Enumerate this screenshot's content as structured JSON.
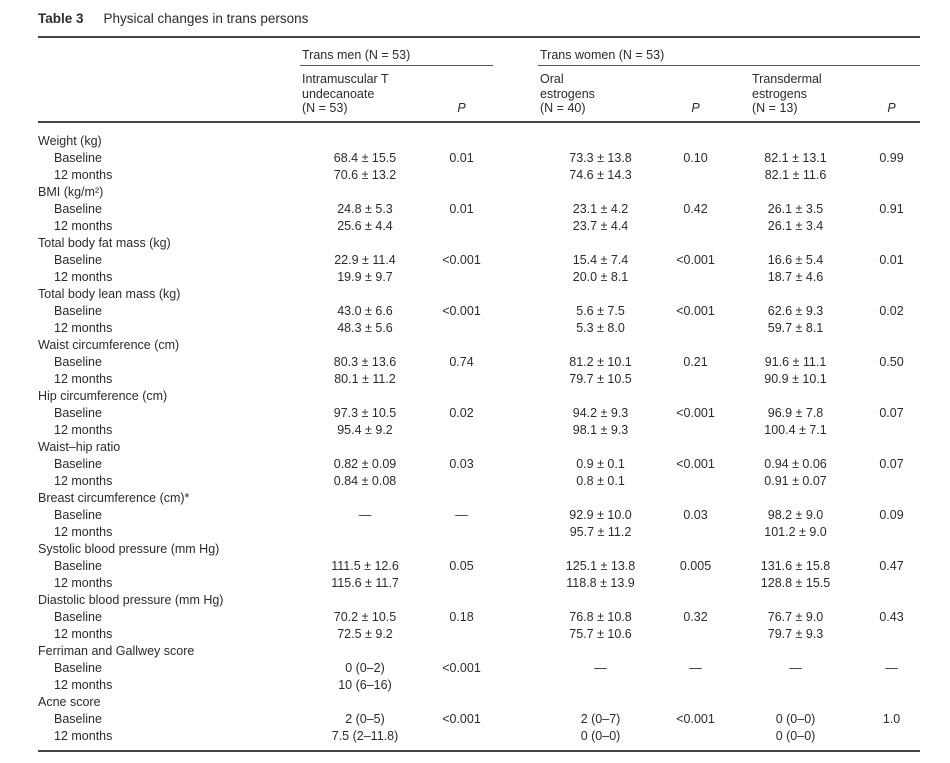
{
  "title": {
    "label": "Table 3",
    "caption": "Physical changes in trans persons"
  },
  "groups": [
    {
      "label": "Trans men (N = 53)"
    },
    {
      "label": "Trans women (N = 53)"
    }
  ],
  "col_headers": {
    "im_t": [
      "Intramuscular T",
      "undecanoate",
      "(N = 53)"
    ],
    "oral": [
      "Oral",
      "estrogens",
      "(N = 40)"
    ],
    "transdermal": [
      "Transdermal",
      "estrogens",
      "(N = 13)"
    ],
    "p": "P"
  },
  "sections": [
    {
      "label": "Weight (kg)",
      "rows": [
        {
          "label": "Baseline",
          "v1": "68.4 ± 15.5",
          "p1": "0.01",
          "v2": "73.3 ± 13.8",
          "p2": "0.10",
          "v3": "82.1 ± 13.1",
          "p3": "0.99"
        },
        {
          "label": "12 months",
          "v1": "70.6 ± 13.2",
          "p1": "",
          "v2": "74.6 ± 14.3",
          "p2": "",
          "v3": "82.1 ± 11.6",
          "p3": ""
        }
      ]
    },
    {
      "label": "BMI (kg/m²)",
      "rows": [
        {
          "label": "Baseline",
          "v1": "24.8 ± 5.3",
          "p1": "0.01",
          "v2": "23.1 ± 4.2",
          "p2": "0.42",
          "v3": "26.1 ± 3.5",
          "p3": "0.91"
        },
        {
          "label": "12 months",
          "v1": "25.6 ± 4.4",
          "p1": "",
          "v2": "23.7 ± 4.4",
          "p2": "",
          "v3": "26.1 ± 3.4",
          "p3": ""
        }
      ]
    },
    {
      "label": "Total body fat mass (kg)",
      "rows": [
        {
          "label": "Baseline",
          "v1": "22.9 ± 11.4",
          "p1": "<0.001",
          "v2": "15.4 ± 7.4",
          "p2": "<0.001",
          "v3": "16.6 ± 5.4",
          "p3": "0.01"
        },
        {
          "label": "12 months",
          "v1": "19.9 ± 9.7",
          "p1": "",
          "v2": "20.0 ± 8.1",
          "p2": "",
          "v3": "18.7 ± 4.6",
          "p3": ""
        }
      ]
    },
    {
      "label": "Total body lean mass (kg)",
      "rows": [
        {
          "label": "Baseline",
          "v1": "43.0 ± 6.6",
          "p1": "<0.001",
          "v2": "5.6 ± 7.5",
          "p2": "<0.001",
          "v3": "62.6 ± 9.3",
          "p3": "0.02"
        },
        {
          "label": "12 months",
          "v1": "48.3 ± 5.6",
          "p1": "",
          "v2": "5.3 ± 8.0",
          "p2": "",
          "v3": "59.7 ± 8.1",
          "p3": ""
        }
      ]
    },
    {
      "label": "Waist circumference (cm)",
      "rows": [
        {
          "label": "Baseline",
          "v1": "80.3 ± 13.6",
          "p1": "0.74",
          "v2": "81.2 ± 10.1",
          "p2": "0.21",
          "v3": "91.6 ± 11.1",
          "p3": "0.50"
        },
        {
          "label": "12 months",
          "v1": "80.1 ± 11.2",
          "p1": "",
          "v2": "79.7 ± 10.5",
          "p2": "",
          "v3": "90.9 ± 10.1",
          "p3": ""
        }
      ]
    },
    {
      "label": "Hip circumference (cm)",
      "rows": [
        {
          "label": "Baseline",
          "v1": "97.3 ± 10.5",
          "p1": "0.02",
          "v2": "94.2 ± 9.3",
          "p2": "<0.001",
          "v3": "96.9 ± 7.8",
          "p3": "0.07"
        },
        {
          "label": "12 months",
          "v1": "95.4 ± 9.2",
          "p1": "",
          "v2": "98.1 ± 9.3",
          "p2": "",
          "v3": "100.4 ± 7.1",
          "p3": ""
        }
      ]
    },
    {
      "label": "Waist–hip ratio",
      "rows": [
        {
          "label": "Baseline",
          "v1": "0.82 ± 0.09",
          "p1": "0.03",
          "v2": "0.9 ± 0.1",
          "p2": "<0.001",
          "v3": "0.94 ± 0.06",
          "p3": "0.07"
        },
        {
          "label": "12 months",
          "v1": "0.84 ± 0.08",
          "p1": "",
          "v2": "0.8 ± 0.1",
          "p2": "",
          "v3": "0.91 ± 0.07",
          "p3": ""
        }
      ]
    },
    {
      "label": "Breast circumference (cm)*",
      "rows": [
        {
          "label": "Baseline",
          "v1": "—",
          "p1": "—",
          "v2": "92.9 ± 10.0",
          "p2": "0.03",
          "v3": "98.2 ± 9.0",
          "p3": "0.09"
        },
        {
          "label": "12 months",
          "v1": "",
          "p1": "",
          "v2": "95.7 ± 11.2",
          "p2": "",
          "v3": "101.2 ± 9.0",
          "p3": ""
        }
      ]
    },
    {
      "label": "Systolic blood pressure (mm Hg)",
      "rows": [
        {
          "label": "Baseline",
          "v1": "111.5 ± 12.6",
          "p1": "0.05",
          "v2": "125.1 ± 13.8",
          "p2": "0.005",
          "v3": "131.6 ± 15.8",
          "p3": "0.47"
        },
        {
          "label": "12 months",
          "v1": "115.6 ± 11.7",
          "p1": "",
          "v2": "118.8 ± 13.9",
          "p2": "",
          "v3": "128.8 ± 15.5",
          "p3": ""
        }
      ]
    },
    {
      "label": "Diastolic blood pressure (mm Hg)",
      "rows": [
        {
          "label": "Baseline",
          "v1": "70.2 ± 10.5",
          "p1": "0.18",
          "v2": "76.8 ± 10.8",
          "p2": "0.32",
          "v3": "76.7 ± 9.0",
          "p3": "0.43"
        },
        {
          "label": "12 months",
          "v1": "72.5 ± 9.2",
          "p1": "",
          "v2": "75.7 ± 10.6",
          "p2": "",
          "v3": "79.7 ± 9.3",
          "p3": ""
        }
      ]
    },
    {
      "label": "Ferriman and Gallwey score",
      "rows": [
        {
          "label": "Baseline",
          "v1": "0 (0–2)",
          "p1": "<0.001",
          "v2": "—",
          "p2": "—",
          "v3": "—",
          "p3": "—"
        },
        {
          "label": "12 months",
          "v1": "10 (6–16)",
          "p1": "",
          "v2": "",
          "p2": "",
          "v3": "",
          "p3": ""
        }
      ]
    },
    {
      "label": "Acne score",
      "rows": [
        {
          "label": "Baseline",
          "v1": "2 (0–5)",
          "p1": "<0.001",
          "v2": "2 (0–7)",
          "p2": "<0.001",
          "v3": "0 (0–0)",
          "p3": "1.0"
        },
        {
          "label": "12 months",
          "v1": "7.5 (2–11.8)",
          "p1": "",
          "v2": "0 (0–0)",
          "p2": "",
          "v3": "0 (0–0)",
          "p3": ""
        }
      ]
    }
  ],
  "colors": {
    "text": "#2b2b2b",
    "rule_heavy": "#454545",
    "rule_light": "#555555",
    "background": "#ffffff"
  }
}
